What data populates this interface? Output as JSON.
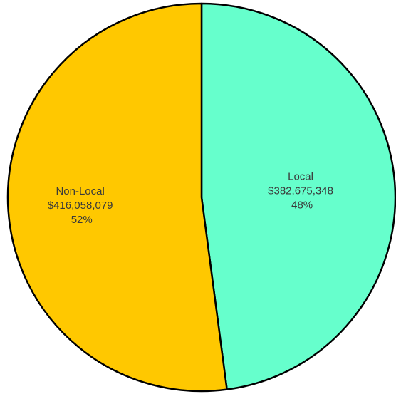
{
  "chart_data": {
    "type": "pie",
    "title": "",
    "slices": [
      {
        "name": "Local",
        "value": 382675348,
        "value_label": "$382,675,348",
        "percent_label": "48%",
        "color": "#66ffcc"
      },
      {
        "name": "Non-Local",
        "value": 416058079,
        "value_label": "$416,058,079",
        "percent_label": "52%",
        "color": "#ffc800"
      }
    ],
    "start_angle_deg": 0,
    "direction": "clockwise",
    "legend": "none",
    "labels_inside": true
  }
}
